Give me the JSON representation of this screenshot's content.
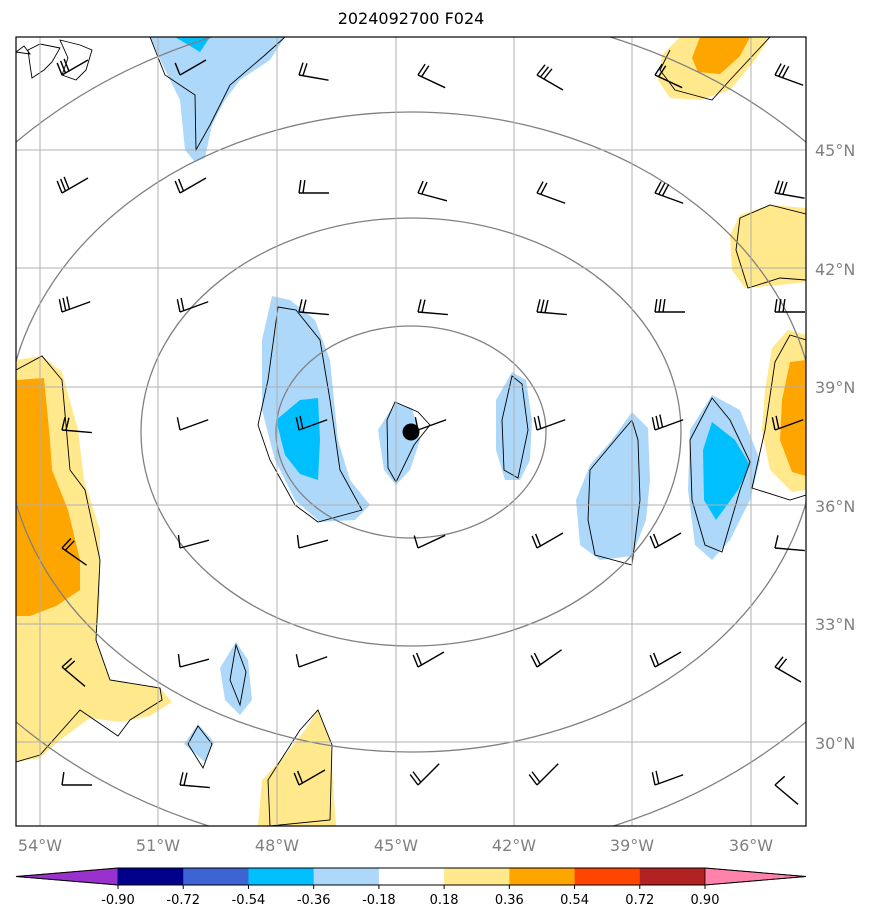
{
  "title": "2024092700 F024",
  "map": {
    "lat_ticks": [
      "45°N",
      "42°N",
      "39°N",
      "36°N",
      "33°N",
      "30°N"
    ],
    "lon_ticks": [
      "54°W",
      "51°W",
      "48°W",
      "45°W",
      "42°W",
      "39°W",
      "36°W"
    ],
    "grid": true,
    "range_rings": 5,
    "center_marker": "storm-center-dot",
    "contour_fill_colors": {
      "light_blue": "#add8fa",
      "blue": "#00bfff",
      "light_yellow": "#ffe98c",
      "orange": "#ffa500"
    }
  },
  "colorbar": {
    "ticks": [
      "-0.90",
      "-0.72",
      "-0.54",
      "-0.36",
      "-0.18",
      "0.18",
      "0.36",
      "0.54",
      "0.72",
      "0.90"
    ],
    "colors": [
      "#9932cc",
      "#00008b",
      "#3c64d2",
      "#00bfff",
      "#add8fa",
      "#ffffff",
      "#ffe98c",
      "#ffa500",
      "#ff4500",
      "#b22222",
      "#ff82ab"
    ]
  }
}
